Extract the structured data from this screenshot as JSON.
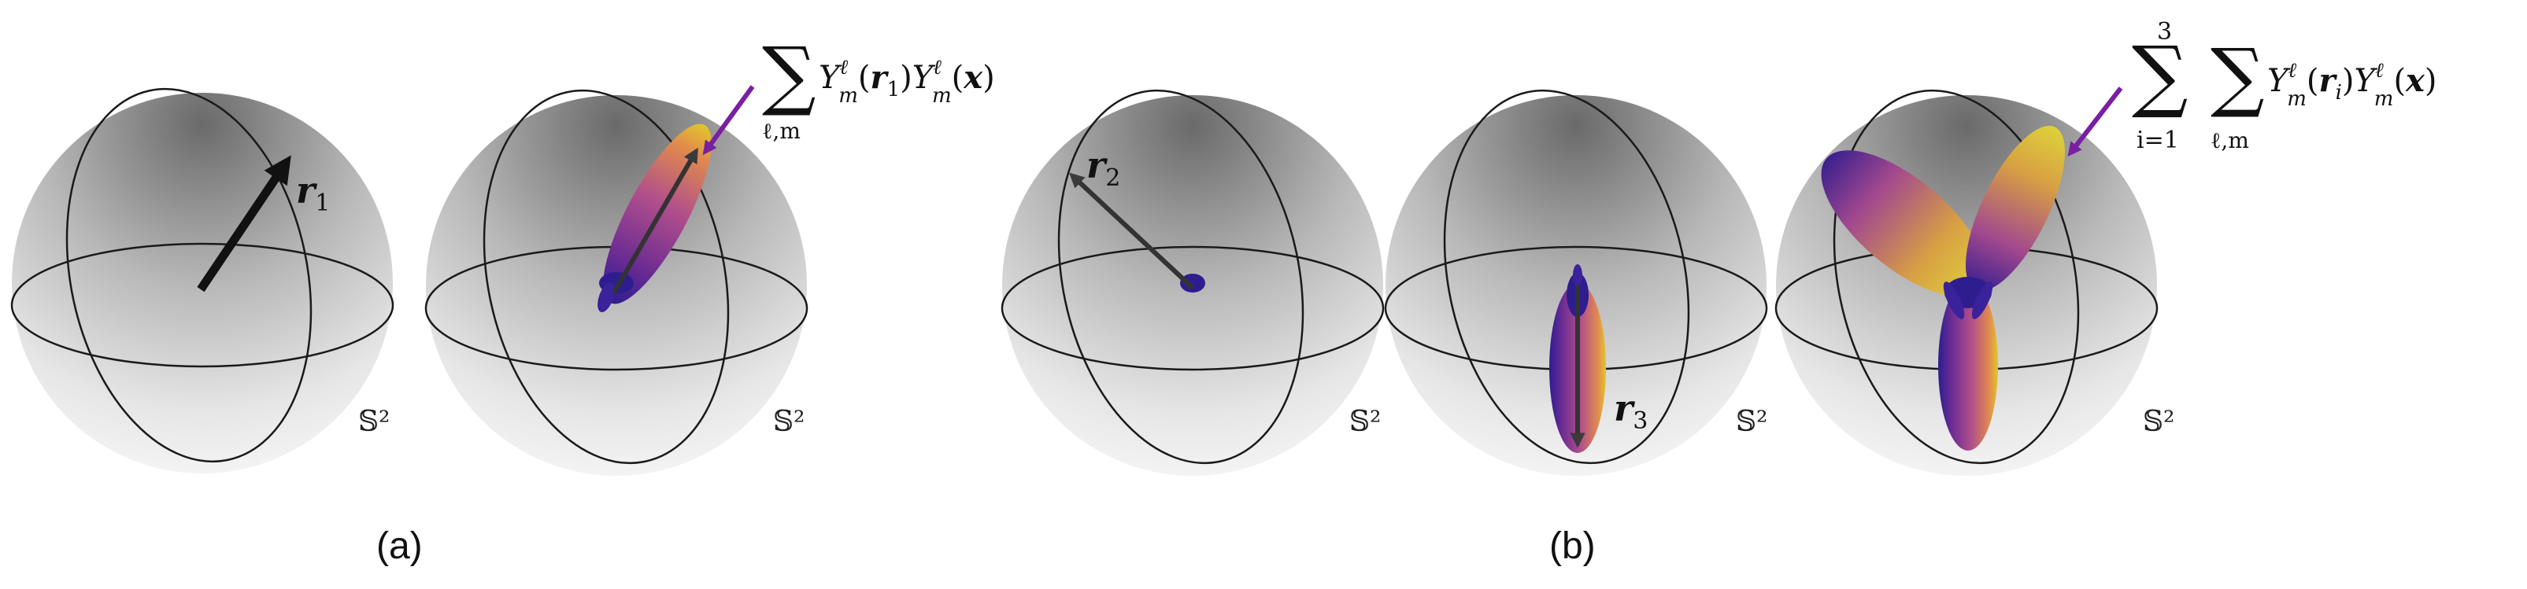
{
  "panels": [
    {
      "label": "(a)"
    },
    {
      "label": "(b)"
    }
  ],
  "spheres": [
    {
      "manifold_label": "𝕊²",
      "vector_label": "r",
      "vector_subscript": "1"
    },
    {
      "manifold_label": "𝕊²"
    },
    {
      "manifold_label": "𝕊²",
      "vector_label": "r",
      "vector_subscript": "2"
    },
    {
      "manifold_label": "𝕊²",
      "vector_label": "r",
      "vector_subscript": "3"
    },
    {
      "manifold_label": "𝕊²"
    }
  ],
  "formulas": {
    "single": {
      "sum_symbol": "∑",
      "sum_index": "ℓ,m",
      "Y": "Y",
      "sup": "ℓ",
      "sub": "m",
      "arg1": "(",
      "arg1_var": "r",
      "arg1_sub": "1",
      "arg1_close": ")",
      "arg2": "(",
      "arg2_var": "x",
      "arg2_close": ")"
    },
    "triple": {
      "outer_sum_symbol": "∑",
      "outer_upper": "3",
      "outer_lower": "i=1",
      "inner_sum_symbol": "∑",
      "inner_index": "ℓ,m",
      "Y": "Y",
      "sup": "ℓ",
      "sub": "m",
      "arg1": "(",
      "arg1_var": "r",
      "arg1_sub": "i",
      "arg1_close": ")",
      "arg2": "(",
      "arg2_var": "x",
      "arg2_close": ")"
    }
  },
  "colors": {
    "sphere_top": "#6f6f6f",
    "sphere_mid": "#c4c4c4",
    "sphere_bottom": "#f3f3f3",
    "great_circle": "#1a1a1a",
    "vector": "#111111",
    "lobe_tip": "#e2c62a",
    "lobe_mid": "#b04e8c",
    "lobe_base": "#2e1d8f",
    "pointer_arrow": "#7a1fa2"
  }
}
